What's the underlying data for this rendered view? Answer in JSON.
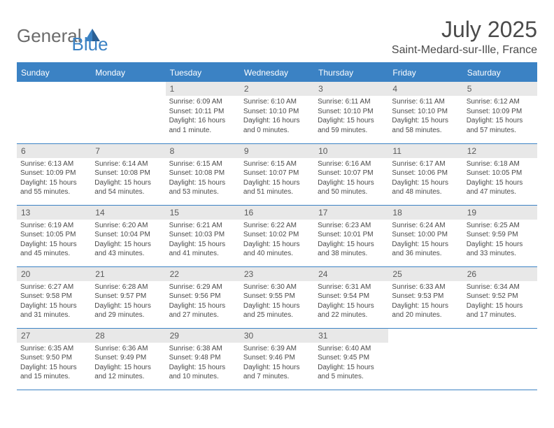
{
  "logo": {
    "text_general": "General",
    "text_blue": "Blue"
  },
  "header": {
    "month_title": "July 2025",
    "location": "Saint-Medard-sur-Ille, France"
  },
  "day_names": [
    "Sunday",
    "Monday",
    "Tuesday",
    "Wednesday",
    "Thursday",
    "Friday",
    "Saturday"
  ],
  "colors": {
    "primary": "#3b82c4",
    "text_gray": "#4a4a4a",
    "day_bg": "#e8e8e8"
  },
  "weeks": [
    [
      null,
      null,
      {
        "day": "1",
        "sunrise": "Sunrise: 6:09 AM",
        "sunset": "Sunset: 10:11 PM",
        "daylight": "Daylight: 16 hours and 1 minute."
      },
      {
        "day": "2",
        "sunrise": "Sunrise: 6:10 AM",
        "sunset": "Sunset: 10:10 PM",
        "daylight": "Daylight: 16 hours and 0 minutes."
      },
      {
        "day": "3",
        "sunrise": "Sunrise: 6:11 AM",
        "sunset": "Sunset: 10:10 PM",
        "daylight": "Daylight: 15 hours and 59 minutes."
      },
      {
        "day": "4",
        "sunrise": "Sunrise: 6:11 AM",
        "sunset": "Sunset: 10:10 PM",
        "daylight": "Daylight: 15 hours and 58 minutes."
      },
      {
        "day": "5",
        "sunrise": "Sunrise: 6:12 AM",
        "sunset": "Sunset: 10:09 PM",
        "daylight": "Daylight: 15 hours and 57 minutes."
      }
    ],
    [
      {
        "day": "6",
        "sunrise": "Sunrise: 6:13 AM",
        "sunset": "Sunset: 10:09 PM",
        "daylight": "Daylight: 15 hours and 55 minutes."
      },
      {
        "day": "7",
        "sunrise": "Sunrise: 6:14 AM",
        "sunset": "Sunset: 10:08 PM",
        "daylight": "Daylight: 15 hours and 54 minutes."
      },
      {
        "day": "8",
        "sunrise": "Sunrise: 6:15 AM",
        "sunset": "Sunset: 10:08 PM",
        "daylight": "Daylight: 15 hours and 53 minutes."
      },
      {
        "day": "9",
        "sunrise": "Sunrise: 6:15 AM",
        "sunset": "Sunset: 10:07 PM",
        "daylight": "Daylight: 15 hours and 51 minutes."
      },
      {
        "day": "10",
        "sunrise": "Sunrise: 6:16 AM",
        "sunset": "Sunset: 10:07 PM",
        "daylight": "Daylight: 15 hours and 50 minutes."
      },
      {
        "day": "11",
        "sunrise": "Sunrise: 6:17 AM",
        "sunset": "Sunset: 10:06 PM",
        "daylight": "Daylight: 15 hours and 48 minutes."
      },
      {
        "day": "12",
        "sunrise": "Sunrise: 6:18 AM",
        "sunset": "Sunset: 10:05 PM",
        "daylight": "Daylight: 15 hours and 47 minutes."
      }
    ],
    [
      {
        "day": "13",
        "sunrise": "Sunrise: 6:19 AM",
        "sunset": "Sunset: 10:05 PM",
        "daylight": "Daylight: 15 hours and 45 minutes."
      },
      {
        "day": "14",
        "sunrise": "Sunrise: 6:20 AM",
        "sunset": "Sunset: 10:04 PM",
        "daylight": "Daylight: 15 hours and 43 minutes."
      },
      {
        "day": "15",
        "sunrise": "Sunrise: 6:21 AM",
        "sunset": "Sunset: 10:03 PM",
        "daylight": "Daylight: 15 hours and 41 minutes."
      },
      {
        "day": "16",
        "sunrise": "Sunrise: 6:22 AM",
        "sunset": "Sunset: 10:02 PM",
        "daylight": "Daylight: 15 hours and 40 minutes."
      },
      {
        "day": "17",
        "sunrise": "Sunrise: 6:23 AM",
        "sunset": "Sunset: 10:01 PM",
        "daylight": "Daylight: 15 hours and 38 minutes."
      },
      {
        "day": "18",
        "sunrise": "Sunrise: 6:24 AM",
        "sunset": "Sunset: 10:00 PM",
        "daylight": "Daylight: 15 hours and 36 minutes."
      },
      {
        "day": "19",
        "sunrise": "Sunrise: 6:25 AM",
        "sunset": "Sunset: 9:59 PM",
        "daylight": "Daylight: 15 hours and 33 minutes."
      }
    ],
    [
      {
        "day": "20",
        "sunrise": "Sunrise: 6:27 AM",
        "sunset": "Sunset: 9:58 PM",
        "daylight": "Daylight: 15 hours and 31 minutes."
      },
      {
        "day": "21",
        "sunrise": "Sunrise: 6:28 AM",
        "sunset": "Sunset: 9:57 PM",
        "daylight": "Daylight: 15 hours and 29 minutes."
      },
      {
        "day": "22",
        "sunrise": "Sunrise: 6:29 AM",
        "sunset": "Sunset: 9:56 PM",
        "daylight": "Daylight: 15 hours and 27 minutes."
      },
      {
        "day": "23",
        "sunrise": "Sunrise: 6:30 AM",
        "sunset": "Sunset: 9:55 PM",
        "daylight": "Daylight: 15 hours and 25 minutes."
      },
      {
        "day": "24",
        "sunrise": "Sunrise: 6:31 AM",
        "sunset": "Sunset: 9:54 PM",
        "daylight": "Daylight: 15 hours and 22 minutes."
      },
      {
        "day": "25",
        "sunrise": "Sunrise: 6:33 AM",
        "sunset": "Sunset: 9:53 PM",
        "daylight": "Daylight: 15 hours and 20 minutes."
      },
      {
        "day": "26",
        "sunrise": "Sunrise: 6:34 AM",
        "sunset": "Sunset: 9:52 PM",
        "daylight": "Daylight: 15 hours and 17 minutes."
      }
    ],
    [
      {
        "day": "27",
        "sunrise": "Sunrise: 6:35 AM",
        "sunset": "Sunset: 9:50 PM",
        "daylight": "Daylight: 15 hours and 15 minutes."
      },
      {
        "day": "28",
        "sunrise": "Sunrise: 6:36 AM",
        "sunset": "Sunset: 9:49 PM",
        "daylight": "Daylight: 15 hours and 12 minutes."
      },
      {
        "day": "29",
        "sunrise": "Sunrise: 6:38 AM",
        "sunset": "Sunset: 9:48 PM",
        "daylight": "Daylight: 15 hours and 10 minutes."
      },
      {
        "day": "30",
        "sunrise": "Sunrise: 6:39 AM",
        "sunset": "Sunset: 9:46 PM",
        "daylight": "Daylight: 15 hours and 7 minutes."
      },
      {
        "day": "31",
        "sunrise": "Sunrise: 6:40 AM",
        "sunset": "Sunset: 9:45 PM",
        "daylight": "Daylight: 15 hours and 5 minutes."
      },
      null,
      null
    ]
  ]
}
